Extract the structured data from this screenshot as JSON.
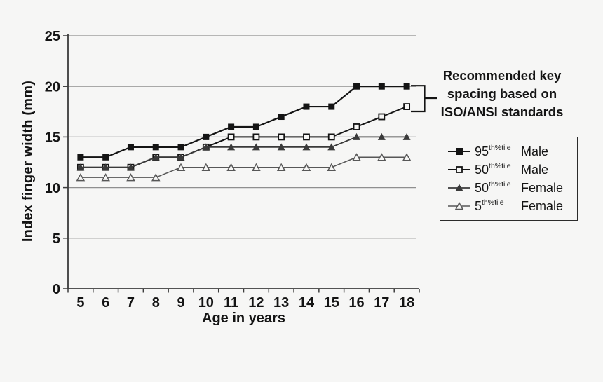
{
  "chart_data": {
    "type": "line",
    "title": "",
    "xlabel": "Age in years",
    "ylabel": "Index finger width (mm)",
    "x": [
      5,
      6,
      7,
      8,
      9,
      10,
      11,
      12,
      13,
      14,
      15,
      16,
      17,
      18
    ],
    "ylim": [
      0,
      25
    ],
    "yticks": [
      0,
      5,
      10,
      15,
      20,
      25
    ],
    "gridlines": [
      5,
      10,
      15,
      20,
      25
    ],
    "grid": true,
    "legend_position": "right",
    "series": [
      {
        "name": "95th%tile Male",
        "marker": "filled-square",
        "color": "#141414",
        "values": [
          13,
          13,
          14,
          14,
          14,
          15,
          16,
          16,
          17,
          18,
          18,
          20,
          20,
          20
        ]
      },
      {
        "name": "50th%tile Male",
        "marker": "open-square",
        "color": "#141414",
        "values": [
          12,
          12,
          12,
          13,
          13,
          14,
          15,
          15,
          15,
          15,
          15,
          16,
          17,
          18
        ]
      },
      {
        "name": "50th%tile Female",
        "marker": "filled-triangle",
        "color": "#3a3a3a",
        "values": [
          12,
          12,
          12,
          13,
          13,
          14,
          14,
          14,
          14,
          14,
          14,
          15,
          15,
          15
        ]
      },
      {
        "name": "5th%tile Female",
        "marker": "open-triangle",
        "color": "#575757",
        "values": [
          11,
          11,
          11,
          11,
          12,
          12,
          12,
          12,
          12,
          12,
          12,
          13,
          13,
          13
        ]
      }
    ]
  },
  "annotation": {
    "lines": [
      "Recommended key",
      "spacing based on",
      "ISO/ANSI standards"
    ]
  },
  "legend": {
    "items": [
      {
        "percentile": "95",
        "sup": "th%tile",
        "gender": "Male",
        "marker": "filled-square"
      },
      {
        "percentile": "50",
        "sup": "th%tile",
        "gender": "Male",
        "marker": "open-square"
      },
      {
        "percentile": "50",
        "sup": "th%tile",
        "gender": "Female",
        "marker": "filled-triangle"
      },
      {
        "percentile": "5",
        "sup": "th%tile",
        "gender": "Female",
        "marker": "open-triangle"
      }
    ]
  },
  "colors": {
    "background": "#f6f6f5",
    "axis": "#3c3c3c",
    "gridline": "#8f8f8f",
    "text": "#141414",
    "female50_line": "#3a3a3a",
    "female5_line": "#575757"
  }
}
